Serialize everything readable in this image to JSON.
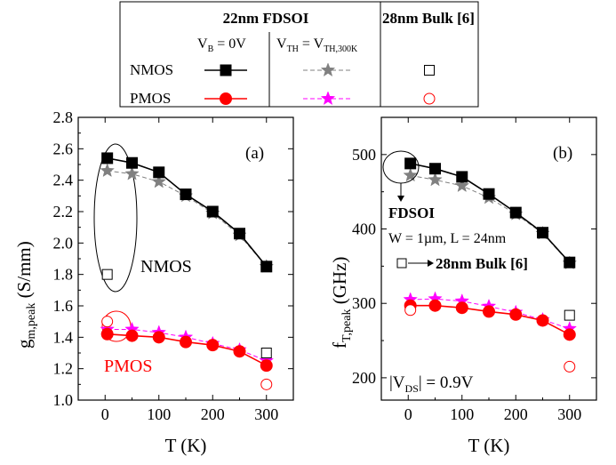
{
  "legend": {
    "col_fdsoi": "22nm FDSOI",
    "col_bulk": "28nm Bulk  [6]",
    "sub_vb": [
      "V",
      "B",
      " = 0V"
    ],
    "sub_vth": [
      "V",
      "TH",
      " = V",
      "TH,300K"
    ],
    "row_nmos": "NMOS",
    "row_pmos": "PMOS"
  },
  "colors": {
    "nmos_vb": "#000000",
    "nmos_vth": "#808080",
    "pmos_vb": "#ff0000",
    "pmos_vth": "#ff00ff",
    "bulk_nmos": "#000000",
    "bulk_pmos": "#ff0000"
  },
  "chart_data": [
    {
      "type": "line",
      "panel_label": "(a)",
      "xlabel": "T (K)",
      "ylabel": [
        "g",
        "m,peak",
        " (S/mm)"
      ],
      "xlim": [
        -50,
        350
      ],
      "ylim": [
        1.0,
        2.8
      ],
      "xticks": [
        0,
        100,
        200,
        300
      ],
      "yticks": [
        1.0,
        1.2,
        1.4,
        1.6,
        1.8,
        2.0,
        2.2,
        2.4,
        2.6,
        2.8
      ],
      "ytick_labels": [
        "1.0",
        "1.2",
        "1.4",
        "1.6",
        "1.8",
        "2.0",
        "2.2",
        "2.4",
        "2.6",
        "2.8"
      ],
      "x": [
        4,
        50,
        100,
        150,
        200,
        250,
        300
      ],
      "series": [
        {
          "key": "nmos_vb",
          "marker": "square",
          "values": [
            2.54,
            2.51,
            2.45,
            2.31,
            2.2,
            2.06,
            1.85
          ]
        },
        {
          "key": "nmos_vth",
          "marker": "star",
          "values": [
            2.46,
            2.44,
            2.39,
            2.3,
            2.19,
            2.05,
            1.85
          ]
        },
        {
          "key": "pmos_vb",
          "marker": "circle",
          "values": [
            1.42,
            1.41,
            1.4,
            1.37,
            1.35,
            1.31,
            1.22
          ]
        },
        {
          "key": "pmos_vth",
          "marker": "star",
          "values": [
            1.45,
            1.45,
            1.43,
            1.4,
            1.36,
            1.32,
            1.25
          ]
        }
      ],
      "bulk_points": [
        {
          "key": "bulk_nmos",
          "marker": "open-square",
          "x": 4,
          "y": 1.8
        },
        {
          "key": "bulk_nmos",
          "marker": "open-square",
          "x": 300,
          "y": 1.3
        },
        {
          "key": "bulk_pmos",
          "marker": "open-circle",
          "x": 4,
          "y": 1.5
        },
        {
          "key": "bulk_pmos",
          "marker": "open-circle",
          "x": 300,
          "y": 1.1
        }
      ],
      "annotations": {
        "nmos": "NMOS",
        "pmos": "PMOS"
      }
    },
    {
      "type": "line",
      "panel_label": "(b)",
      "xlabel": "T (K)",
      "ylabel": [
        "f",
        "T,peak",
        " (GHz)"
      ],
      "xlim": [
        -50,
        350
      ],
      "ylim": [
        170,
        550
      ],
      "xticks": [
        0,
        100,
        200,
        300
      ],
      "yticks": [
        200,
        300,
        400,
        500
      ],
      "ytick_labels": [
        "200",
        "300",
        "400",
        "500"
      ],
      "x": [
        4,
        50,
        100,
        150,
        200,
        250,
        300
      ],
      "series": [
        {
          "key": "nmos_vb",
          "marker": "square",
          "values": [
            488,
            481,
            470,
            447,
            422,
            395,
            355
          ]
        },
        {
          "key": "nmos_vth",
          "marker": "star",
          "values": [
            472,
            466,
            458,
            442,
            420,
            394,
            354
          ]
        },
        {
          "key": "pmos_vb",
          "marker": "circle",
          "values": [
            297,
            297,
            294,
            289,
            285,
            277,
            258
          ]
        },
        {
          "key": "pmos_vth",
          "marker": "star",
          "values": [
            305,
            306,
            303,
            296,
            288,
            278,
            266
          ]
        }
      ],
      "bulk_points": [
        {
          "key": "bulk_nmos",
          "marker": "open-square",
          "x": 300,
          "y": 284
        },
        {
          "key": "bulk_pmos",
          "marker": "open-circle",
          "x": 4,
          "y": 291
        },
        {
          "key": "bulk_pmos",
          "marker": "open-circle",
          "x": 300,
          "y": 215
        }
      ],
      "annotations": {
        "fdsoi": "FDSOI",
        "dims": "W = 1µm, L = 24nm",
        "bulk": "28nm Bulk [6]",
        "vds": [
          "|V",
          "DS",
          "| = 0.9V"
        ]
      }
    }
  ]
}
